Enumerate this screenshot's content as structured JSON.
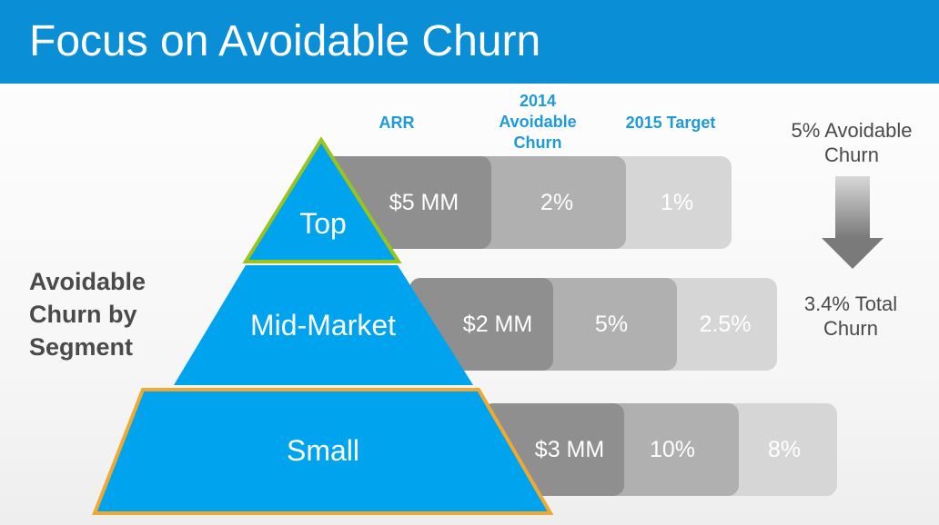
{
  "header": {
    "title": "Focus on Avoidable Churn"
  },
  "columns": {
    "arr": "ARR",
    "churn_2014": "2014 Avoidable Churn",
    "target_2015": "2015 Target"
  },
  "side_label": "Avoidable Churn by Segment",
  "segments": [
    {
      "name": "Top",
      "arr": "$5 MM",
      "churn_2014": "2%",
      "target_2015": "1%"
    },
    {
      "name": "Mid-Market",
      "arr": "$2 MM",
      "churn_2014": "5%",
      "target_2015": "2.5%"
    },
    {
      "name": "Small",
      "arr": "$3 MM",
      "churn_2014": "10%",
      "target_2015": "8%"
    }
  ],
  "notes": {
    "avoidable": "5% Avoidable Churn",
    "total": "3.4% Total Churn"
  },
  "colors": {
    "header": "#0a8ed6",
    "pyramid": "#00a3ee",
    "top_border": "#9ac31c",
    "small_border": "#f0a830",
    "column_text": "#1e9ad8"
  }
}
